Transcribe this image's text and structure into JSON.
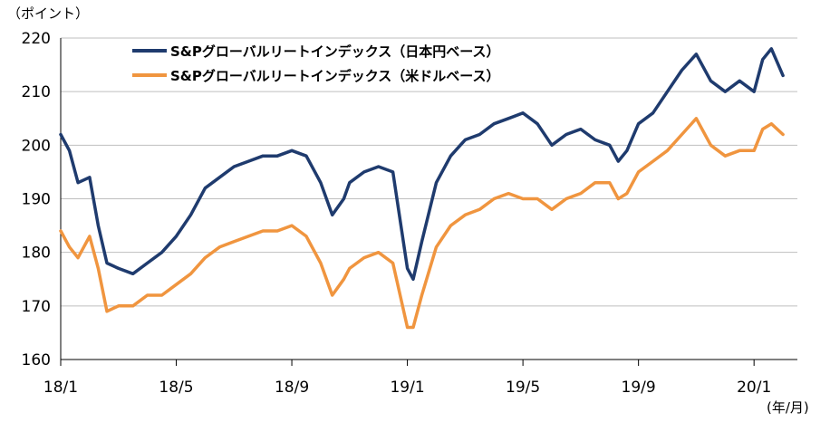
{
  "chart_data": {
    "type": "line",
    "y_unit_label": "（ポイント）",
    "x_unit_label": "(年/月)",
    "ylim": [
      160,
      220
    ],
    "y_ticks": [
      "220",
      "210",
      "200",
      "190",
      "180",
      "170",
      "160"
    ],
    "x_ticks": [
      "18/1",
      "18/5",
      "18/9",
      "19/1",
      "19/5",
      "19/9",
      "20/1"
    ],
    "grid": "horizontal",
    "legend_position": "top-left",
    "colors": {
      "jpy": "#1f3b6e",
      "usd": "#f0953f",
      "axis": "#000000",
      "grid": "#bfbfbf"
    },
    "series": [
      {
        "name": "S&Pグローバルリートインデックス（日本円ベース）",
        "color": "#1f3b6e",
        "points": [
          [
            "18/1",
            202
          ],
          [
            "18/1.3",
            199
          ],
          [
            "18/1.6",
            193
          ],
          [
            "18/2",
            194
          ],
          [
            "18/2.3",
            185
          ],
          [
            "18/2.6",
            178
          ],
          [
            "18/3",
            177
          ],
          [
            "18/3.5",
            176
          ],
          [
            "18/4",
            178
          ],
          [
            "18/4.5",
            180
          ],
          [
            "18/5",
            183
          ],
          [
            "18/5.5",
            187
          ],
          [
            "18/6",
            192
          ],
          [
            "18/6.5",
            194
          ],
          [
            "18/7",
            196
          ],
          [
            "18/7.5",
            197
          ],
          [
            "18/8",
            198
          ],
          [
            "18/8.5",
            198
          ],
          [
            "18/9",
            199
          ],
          [
            "18/9.5",
            198
          ],
          [
            "18/10",
            193
          ],
          [
            "18/10.4",
            187
          ],
          [
            "18/10.8",
            190
          ],
          [
            "18/11",
            193
          ],
          [
            "18/11.5",
            195
          ],
          [
            "18/12",
            196
          ],
          [
            "18/12.5",
            195
          ],
          [
            "19/1",
            177
          ],
          [
            "19/1.2",
            175
          ],
          [
            "19/1.5",
            182
          ],
          [
            "19/2",
            193
          ],
          [
            "19/2.5",
            198
          ],
          [
            "19/3",
            201
          ],
          [
            "19/3.5",
            202
          ],
          [
            "19/4",
            204
          ],
          [
            "19/4.5",
            205
          ],
          [
            "19/5",
            206
          ],
          [
            "19/5.5",
            204
          ],
          [
            "19/6",
            200
          ],
          [
            "19/6.5",
            202
          ],
          [
            "19/7",
            203
          ],
          [
            "19/7.5",
            201
          ],
          [
            "19/8",
            200
          ],
          [
            "19/8.3",
            197
          ],
          [
            "19/8.6",
            199
          ],
          [
            "19/9",
            204
          ],
          [
            "19/9.5",
            206
          ],
          [
            "19/10",
            210
          ],
          [
            "19/10.5",
            214
          ],
          [
            "19/11",
            217
          ],
          [
            "19/11.5",
            212
          ],
          [
            "19/12",
            210
          ],
          [
            "19/12.5",
            212
          ],
          [
            "20/1",
            210
          ],
          [
            "20/1.3",
            216
          ],
          [
            "20/1.6",
            218
          ],
          [
            "20/2",
            213
          ]
        ]
      },
      {
        "name": "S&Pグローバルリートインデックス（米ドルベース）",
        "color": "#f0953f",
        "points": [
          [
            "18/1",
            184
          ],
          [
            "18/1.3",
            181
          ],
          [
            "18/1.6",
            179
          ],
          [
            "18/2",
            183
          ],
          [
            "18/2.3",
            177
          ],
          [
            "18/2.6",
            169
          ],
          [
            "18/3",
            170
          ],
          [
            "18/3.5",
            170
          ],
          [
            "18/4",
            172
          ],
          [
            "18/4.5",
            172
          ],
          [
            "18/5",
            174
          ],
          [
            "18/5.5",
            176
          ],
          [
            "18/6",
            179
          ],
          [
            "18/6.5",
            181
          ],
          [
            "18/7",
            182
          ],
          [
            "18/7.5",
            183
          ],
          [
            "18/8",
            184
          ],
          [
            "18/8.5",
            184
          ],
          [
            "18/9",
            185
          ],
          [
            "18/9.5",
            183
          ],
          [
            "18/10",
            178
          ],
          [
            "18/10.4",
            172
          ],
          [
            "18/10.8",
            175
          ],
          [
            "18/11",
            177
          ],
          [
            "18/11.5",
            179
          ],
          [
            "18/12",
            180
          ],
          [
            "18/12.5",
            178
          ],
          [
            "19/1",
            166
          ],
          [
            "19/1.2",
            166
          ],
          [
            "19/1.5",
            172
          ],
          [
            "19/2",
            181
          ],
          [
            "19/2.5",
            185
          ],
          [
            "19/3",
            187
          ],
          [
            "19/3.5",
            188
          ],
          [
            "19/4",
            190
          ],
          [
            "19/4.5",
            191
          ],
          [
            "19/5",
            190
          ],
          [
            "19/5.5",
            190
          ],
          [
            "19/6",
            188
          ],
          [
            "19/6.5",
            190
          ],
          [
            "19/7",
            191
          ],
          [
            "19/7.5",
            193
          ],
          [
            "19/8",
            193
          ],
          [
            "19/8.3",
            190
          ],
          [
            "19/8.6",
            191
          ],
          [
            "19/9",
            195
          ],
          [
            "19/9.5",
            197
          ],
          [
            "19/10",
            199
          ],
          [
            "19/10.5",
            202
          ],
          [
            "19/11",
            205
          ],
          [
            "19/11.5",
            200
          ],
          [
            "19/12",
            198
          ],
          [
            "19/12.5",
            199
          ],
          [
            "20/1",
            199
          ],
          [
            "20/1.3",
            203
          ],
          [
            "20/1.6",
            204
          ],
          [
            "20/2",
            202
          ]
        ]
      }
    ]
  }
}
